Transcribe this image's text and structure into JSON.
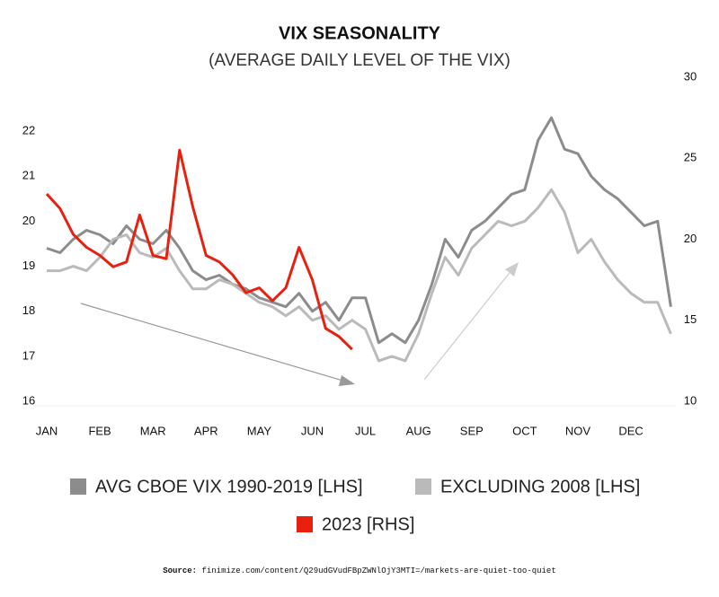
{
  "chart_data": {
    "type": "line",
    "title": "VIX SEASONALITY",
    "subtitle": "(AVERAGE DAILY LEVEL OF THE VIX)",
    "x": [
      0,
      0.25,
      0.5,
      0.75,
      1,
      1.25,
      1.5,
      1.75,
      2,
      2.25,
      2.5,
      2.75,
      3,
      3.25,
      3.5,
      3.75,
      4,
      4.25,
      4.5,
      4.75,
      5,
      5.25,
      5.5,
      5.75,
      6,
      6.25,
      6.5,
      6.75,
      7,
      7.25,
      7.5,
      7.75,
      8,
      8.25,
      8.5,
      8.75,
      9,
      9.25,
      9.5,
      9.75,
      10,
      10.25,
      10.5,
      10.75,
      11,
      11.25,
      11.5,
      11.75
    ],
    "xlim": [
      0,
      12
    ],
    "xticks": [
      {
        "value": 0,
        "label": "JAN"
      },
      {
        "value": 1,
        "label": "FEB"
      },
      {
        "value": 2,
        "label": "MAR"
      },
      {
        "value": 3,
        "label": "APR"
      },
      {
        "value": 4,
        "label": "MAY"
      },
      {
        "value": 5,
        "label": "JUN"
      },
      {
        "value": 6,
        "label": "JUL"
      },
      {
        "value": 7,
        "label": "AUG"
      },
      {
        "value": 8,
        "label": "SEP"
      },
      {
        "value": 9,
        "label": "OCT"
      },
      {
        "value": 10,
        "label": "NOV"
      },
      {
        "value": 11,
        "label": "DEC"
      }
    ],
    "ylim": [
      16,
      23.2
    ],
    "yticks": [
      16,
      17,
      18,
      19,
      20,
      21,
      22
    ],
    "y2lim": [
      10,
      30
    ],
    "y2ticks": [
      10,
      15,
      20,
      25,
      30
    ],
    "series": [
      {
        "name": "AVG CBOE VIX 1990-2019 [LHS]",
        "color": "#8c8c8c",
        "values": [
          19.4,
          19.3,
          19.6,
          19.8,
          19.7,
          19.5,
          19.9,
          19.6,
          19.5,
          19.8,
          19.4,
          18.9,
          18.7,
          18.8,
          18.6,
          18.5,
          18.3,
          18.2,
          18.1,
          18.4,
          18.0,
          18.2,
          17.8,
          18.3,
          18.3,
          17.3,
          17.5,
          17.3,
          17.8,
          18.6,
          19.6,
          19.2,
          19.8,
          20.0,
          20.3,
          20.6,
          20.7,
          21.8,
          22.3,
          21.6,
          21.5,
          21.0,
          20.7,
          20.5,
          20.2,
          19.9,
          20.0,
          18.1
        ]
      },
      {
        "name": "EXCLUDING 2008 [LHS]",
        "color": "#bababa",
        "values": [
          18.9,
          18.9,
          19.0,
          18.9,
          19.2,
          19.6,
          19.7,
          19.3,
          19.2,
          19.4,
          18.9,
          18.5,
          18.5,
          18.7,
          18.6,
          18.4,
          18.2,
          18.1,
          17.9,
          18.1,
          17.8,
          17.9,
          17.6,
          17.8,
          17.6,
          16.9,
          17.0,
          16.9,
          17.5,
          18.4,
          19.2,
          18.8,
          19.4,
          19.7,
          20.0,
          19.9,
          20.0,
          20.3,
          20.7,
          20.2,
          19.3,
          19.6,
          19.1,
          18.7,
          18.4,
          18.2,
          18.2,
          17.5
        ]
      },
      {
        "name": "2023 [RHS]",
        "color": "#e8210f",
        "axis": "y2",
        "values": [
          22.8,
          21.9,
          20.3,
          19.5,
          19.0,
          18.3,
          18.6,
          21.5,
          19.0,
          18.8,
          25.5,
          22.0,
          19.0,
          18.6,
          17.8,
          16.7,
          17.0,
          16.2,
          17.0,
          19.5,
          17.5,
          14.5,
          14.0,
          13.2,
          null,
          null,
          null,
          null,
          null,
          null,
          null,
          null,
          null,
          null,
          null,
          null,
          null,
          null,
          null,
          null,
          null,
          null,
          null,
          null,
          null,
          null,
          null,
          null
        ]
      }
    ],
    "source_label": "Source:",
    "source": "finimize.com/content/Q29udGVudFBpZWNlOjY3MTI=/markets-are-quiet-too-quiet"
  }
}
